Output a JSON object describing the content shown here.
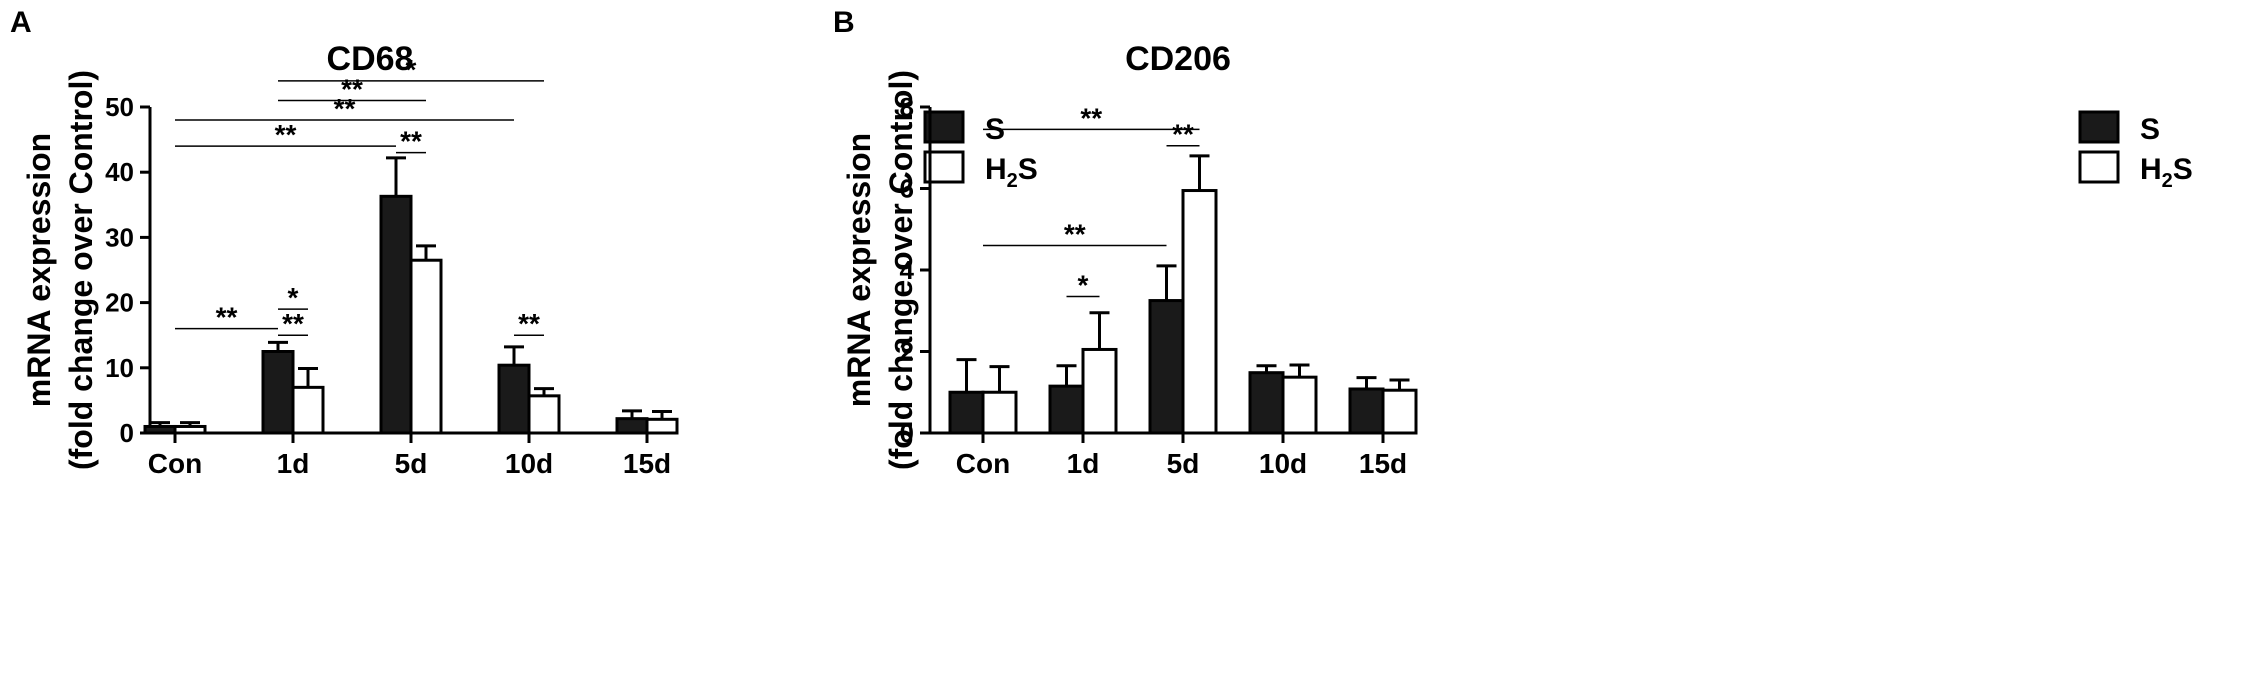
{
  "chart_data": [
    {
      "panel_label": "A",
      "type": "bar",
      "title": "CD68",
      "ylabel_line1": "mRNA expression",
      "ylabel_line2": "(fold change over Control)",
      "xlabel": "",
      "ylim": [
        0,
        50
      ],
      "yticks": [
        0,
        10,
        20,
        30,
        40,
        50
      ],
      "categories": [
        "Con",
        "1d",
        "5d",
        "10d",
        "15d"
      ],
      "series": [
        {
          "name": "S",
          "fill": "#1a1a1a",
          "values": [
            1.0,
            12.5,
            36.3,
            10.4,
            2.2
          ],
          "errors": [
            0.6,
            1.4,
            5.9,
            2.8,
            1.2
          ]
        },
        {
          "name": "H2S",
          "fill": "#ffffff",
          "values": [
            1.0,
            7.0,
            26.5,
            5.7,
            2.1
          ],
          "errors": [
            0.6,
            2.9,
            2.2,
            1.1,
            1.2
          ]
        }
      ],
      "legend": [
        {
          "prefix": "S",
          "sub": "",
          "suffix": ""
        },
        {
          "prefix": "H",
          "sub": "2",
          "suffix": "S"
        }
      ],
      "annotations": [
        {
          "label": "**",
          "y": 16,
          "from": [
            0,
            "center"
          ],
          "to": [
            1,
            0
          ]
        },
        {
          "label": "*",
          "y": 19,
          "from": [
            1,
            0
          ],
          "to": [
            1,
            1
          ]
        },
        {
          "label": "**",
          "y": 15,
          "from": [
            1,
            0
          ],
          "to": [
            1,
            1
          ]
        },
        {
          "label": "**",
          "y": 44,
          "from": [
            0,
            "center"
          ],
          "to": [
            2,
            0
          ]
        },
        {
          "label": "**",
          "y": 43,
          "from": [
            2,
            0
          ],
          "to": [
            2,
            1
          ]
        },
        {
          "label": "**",
          "y": 48,
          "from": [
            0,
            "center"
          ],
          "to": [
            3,
            0
          ]
        },
        {
          "label": "**",
          "y": 51,
          "from": [
            1,
            0
          ],
          "to": [
            2,
            1
          ]
        },
        {
          "label": "*",
          "y": 54,
          "from": [
            1,
            0
          ],
          "to": [
            3,
            1
          ]
        },
        {
          "label": "**",
          "y": 15,
          "from": [
            3,
            0
          ],
          "to": [
            3,
            1
          ]
        }
      ]
    },
    {
      "panel_label": "B",
      "type": "bar",
      "title": "CD206",
      "ylabel_line1": "mRNA expression",
      "ylabel_line2": "(fold change over Control)",
      "xlabel": "",
      "ylim": [
        0,
        8
      ],
      "yticks": [
        0,
        2,
        4,
        6,
        8
      ],
      "categories": [
        "Con",
        "1d",
        "5d",
        "10d",
        "15d"
      ],
      "series": [
        {
          "name": "S",
          "fill": "#1a1a1a",
          "values": [
            1.0,
            1.15,
            3.25,
            1.48,
            1.08
          ],
          "errors": [
            0.8,
            0.5,
            0.85,
            0.17,
            0.28
          ]
        },
        {
          "name": "H2S",
          "fill": "#ffffff",
          "values": [
            1.0,
            2.05,
            5.95,
            1.37,
            1.05
          ],
          "errors": [
            0.63,
            0.9,
            0.85,
            0.3,
            0.25
          ]
        }
      ],
      "legend": [
        {
          "prefix": "S",
          "sub": "",
          "suffix": ""
        },
        {
          "prefix": "H",
          "sub": "2",
          "suffix": "S"
        }
      ],
      "annotations": [
        {
          "label": "*",
          "y": 3.35,
          "from": [
            1,
            0
          ],
          "to": [
            1,
            1
          ]
        },
        {
          "label": "**",
          "y": 4.6,
          "from": [
            0,
            "center"
          ],
          "to": [
            2,
            0
          ]
        },
        {
          "label": "**",
          "y": 7.05,
          "from": [
            2,
            0
          ],
          "to": [
            2,
            1
          ]
        },
        {
          "label": "**",
          "y": 7.45,
          "from": [
            0,
            "center"
          ],
          "to": [
            2,
            1
          ]
        }
      ]
    }
  ]
}
